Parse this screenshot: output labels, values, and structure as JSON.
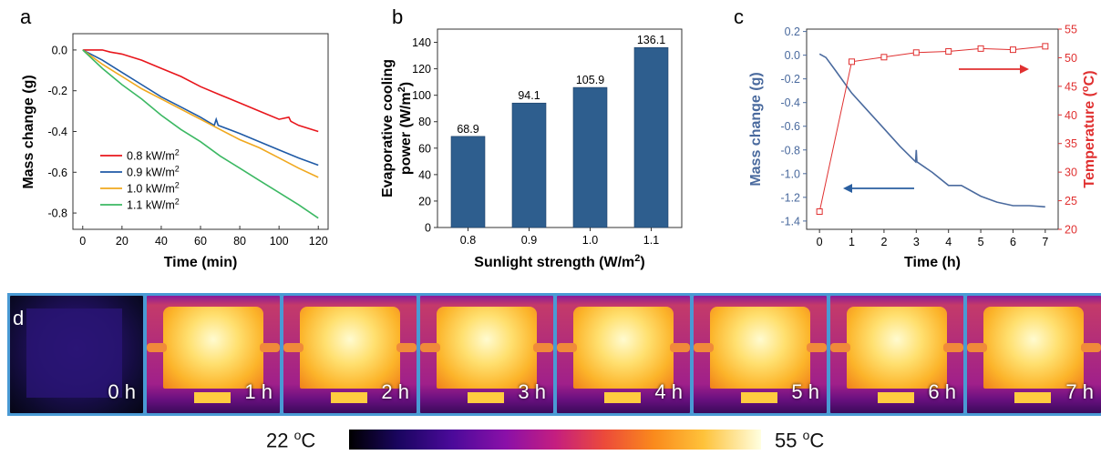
{
  "panel_letters": {
    "a": "a",
    "b": "b",
    "c": "c",
    "d": "d"
  },
  "chart_data": [
    {
      "type": "line",
      "panel": "a",
      "xlabel": "Time (min)",
      "ylabel": "Mass change (g)",
      "xlim": [
        -5,
        125
      ],
      "ylim": [
        -0.88,
        0.08
      ],
      "x_ticks": [
        "0",
        "20",
        "40",
        "60",
        "80",
        "100",
        "120"
      ],
      "y_ticks": [
        "0.0",
        "-0.2",
        "-0.4",
        "-0.6",
        "-0.8"
      ],
      "legend_position": "lower-left",
      "series": [
        {
          "name": "0.8 kW/m",
          "sup": "2",
          "color": "#e8161c",
          "points": [
            [
              0,
              0
            ],
            [
              10,
              0
            ],
            [
              14,
              -0.01
            ],
            [
              20,
              -0.02
            ],
            [
              30,
              -0.05
            ],
            [
              40,
              -0.09
            ],
            [
              50,
              -0.13
            ],
            [
              60,
              -0.18
            ],
            [
              70,
              -0.22
            ],
            [
              80,
              -0.26
            ],
            [
              90,
              -0.3
            ],
            [
              100,
              -0.34
            ],
            [
              105,
              -0.33
            ],
            [
              106,
              -0.35
            ],
            [
              110,
              -0.37
            ],
            [
              120,
              -0.4
            ]
          ]
        },
        {
          "name": "0.9 kW/m",
          "sup": "2",
          "color": "#1f5aa6",
          "points": [
            [
              0,
              0
            ],
            [
              10,
              -0.05
            ],
            [
              20,
              -0.11
            ],
            [
              30,
              -0.17
            ],
            [
              40,
              -0.23
            ],
            [
              50,
              -0.28
            ],
            [
              60,
              -0.33
            ],
            [
              67,
              -0.37
            ],
            [
              68,
              -0.34
            ],
            [
              69,
              -0.37
            ],
            [
              80,
              -0.41
            ],
            [
              90,
              -0.45
            ],
            [
              100,
              -0.49
            ],
            [
              110,
              -0.53
            ],
            [
              120,
              -0.565
            ]
          ]
        },
        {
          "name": "1.0 kW/m",
          "sup": "2",
          "color": "#f0a81e",
          "points": [
            [
              0,
              0
            ],
            [
              10,
              -0.07
            ],
            [
              20,
              -0.13
            ],
            [
              30,
              -0.19
            ],
            [
              40,
              -0.24
            ],
            [
              50,
              -0.29
            ],
            [
              60,
              -0.34
            ],
            [
              70,
              -0.39
            ],
            [
              80,
              -0.44
            ],
            [
              90,
              -0.48
            ],
            [
              100,
              -0.53
            ],
            [
              110,
              -0.58
            ],
            [
              120,
              -0.625
            ]
          ]
        },
        {
          "name": "1.1 kW/m",
          "sup": "2",
          "color": "#3cb863",
          "points": [
            [
              0,
              0
            ],
            [
              10,
              -0.09
            ],
            [
              20,
              -0.17
            ],
            [
              30,
              -0.24
            ],
            [
              40,
              -0.32
            ],
            [
              50,
              -0.39
            ],
            [
              60,
              -0.45
            ],
            [
              70,
              -0.52
            ],
            [
              80,
              -0.58
            ],
            [
              90,
              -0.64
            ],
            [
              100,
              -0.7
            ],
            [
              110,
              -0.76
            ],
            [
              120,
              -0.825
            ]
          ]
        }
      ]
    },
    {
      "type": "bar",
      "panel": "b",
      "xlabel": "Sunlight strength (W/m",
      "xlabel_sup": "2",
      "xlabel_tail": ")",
      "ylabel_line1": "Evaporative cooling",
      "ylabel_line2": "power (W/m",
      "ylabel_sup": "2",
      "ylabel_tail": ")",
      "categories": [
        "0.8",
        "0.9",
        "1.0",
        "1.1"
      ],
      "values": [
        68.9,
        94.1,
        105.9,
        136.1
      ],
      "value_labels": [
        "68.9",
        "94.1",
        "105.9",
        "136.1"
      ],
      "bar_color": "#2e5e8e",
      "ylim": [
        0,
        150
      ],
      "y_ticks": [
        "0",
        "20",
        "40",
        "60",
        "80",
        "100",
        "120",
        "140"
      ]
    },
    {
      "type": "line",
      "panel": "c",
      "xlabel": "Time (h)",
      "ylabel_left": "Mass change (g)",
      "ylabel_right": "Temperature (",
      "ylabel_right_sup": "o",
      "ylabel_right_tail": "C)",
      "xlim": [
        -0.4,
        7.4
      ],
      "ylim_left": [
        -1.47,
        0.22
      ],
      "ylim_right": [
        20,
        55
      ],
      "x_ticks": [
        "0",
        "1",
        "2",
        "3",
        "4",
        "5",
        "6",
        "7"
      ],
      "y_ticks_left": [
        "0.2",
        "0.0",
        "-0.2",
        "-0.4",
        "-0.6",
        "-0.8",
        "-1.0",
        "-1.2",
        "-1.4"
      ],
      "y_ticks_right": [
        "20",
        "25",
        "30",
        "35",
        "40",
        "45",
        "50",
        "55"
      ],
      "left_color": "#4a6a9e",
      "right_color": "#e03030",
      "mass_series": {
        "name": "Mass change",
        "points": [
          [
            0,
            0.01
          ],
          [
            0.2,
            -0.02
          ],
          [
            0.5,
            -0.13
          ],
          [
            1,
            -0.32
          ],
          [
            1.5,
            -0.47
          ],
          [
            2,
            -0.62
          ],
          [
            2.5,
            -0.77
          ],
          [
            2.98,
            -0.9
          ],
          [
            3.0,
            -0.8
          ],
          [
            3.02,
            -0.9
          ],
          [
            3.5,
            -0.99
          ],
          [
            4,
            -1.1
          ],
          [
            4.4,
            -1.1
          ],
          [
            5,
            -1.19
          ],
          [
            5.5,
            -1.24
          ],
          [
            6,
            -1.27
          ],
          [
            6.5,
            -1.27
          ],
          [
            7,
            -1.28
          ]
        ]
      },
      "temperature_series": {
        "name": "Temperature",
        "points": [
          [
            0,
            23.1
          ],
          [
            1,
            49.3
          ],
          [
            2,
            50.1
          ],
          [
            3,
            50.9
          ],
          [
            4,
            51.1
          ],
          [
            5,
            51.6
          ],
          [
            6,
            51.4
          ],
          [
            7,
            52.0
          ]
        ]
      }
    }
  ],
  "thermal_images": {
    "frames": [
      {
        "label": "0 h"
      },
      {
        "label": "1 h"
      },
      {
        "label": "2 h"
      },
      {
        "label": "3 h"
      },
      {
        "label": "4 h"
      },
      {
        "label": "5 h"
      },
      {
        "label": "6 h"
      },
      {
        "label": "7 h"
      }
    ]
  },
  "colorbar": {
    "min_label": "22 ",
    "min_sup": "o",
    "min_unit": "C",
    "max_label": "55 ",
    "max_sup": "o",
    "max_unit": "C"
  }
}
